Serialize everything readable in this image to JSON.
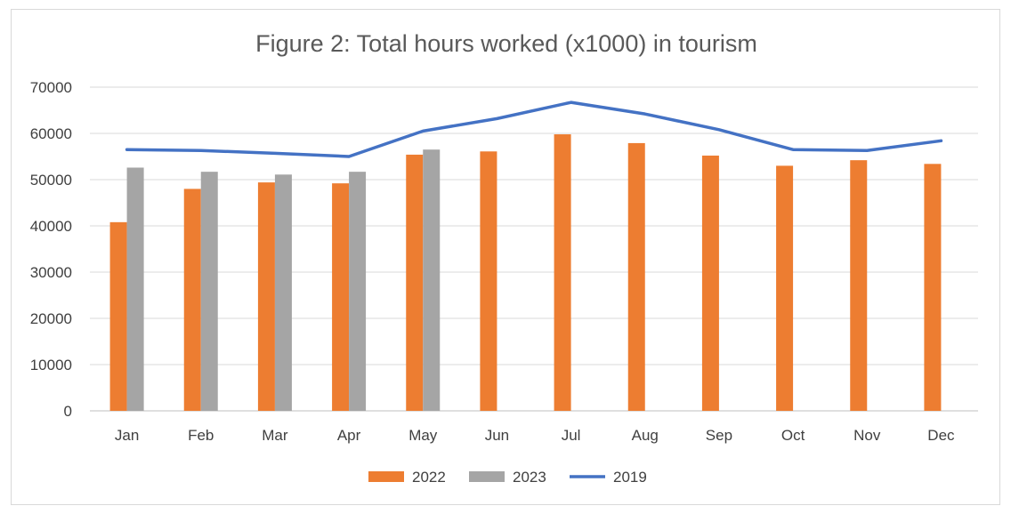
{
  "chart_data": {
    "type": "bar",
    "title": "Figure 2: Total hours worked (x1000) in tourism",
    "xlabel": "",
    "ylabel": "",
    "categories": [
      "Jan",
      "Feb",
      "Mar",
      "Apr",
      "May",
      "Jun",
      "Jul",
      "Aug",
      "Sep",
      "Oct",
      "Nov",
      "Dec"
    ],
    "ylim": [
      0,
      70000
    ],
    "yticks": [
      "0",
      "10000",
      "20000",
      "30000",
      "40000",
      "50000",
      "60000",
      "70000"
    ],
    "grid": true,
    "legend": "bottom",
    "series": [
      {
        "name": "2022",
        "kind": "bar",
        "color": "#ed7d31",
        "values": [
          40800,
          48000,
          49400,
          49200,
          55400,
          56100,
          59800,
          57900,
          55200,
          53000,
          54200,
          53400
        ]
      },
      {
        "name": "2023",
        "kind": "bar",
        "color": "#a5a5a5",
        "values": [
          52600,
          51700,
          51100,
          51700,
          56500,
          null,
          null,
          null,
          null,
          null,
          null,
          null
        ]
      },
      {
        "name": "2019",
        "kind": "line",
        "color": "#4472c4",
        "values": [
          56500,
          56300,
          55700,
          55000,
          60500,
          63200,
          66700,
          64200,
          60800,
          56500,
          56300,
          58400
        ]
      }
    ]
  }
}
